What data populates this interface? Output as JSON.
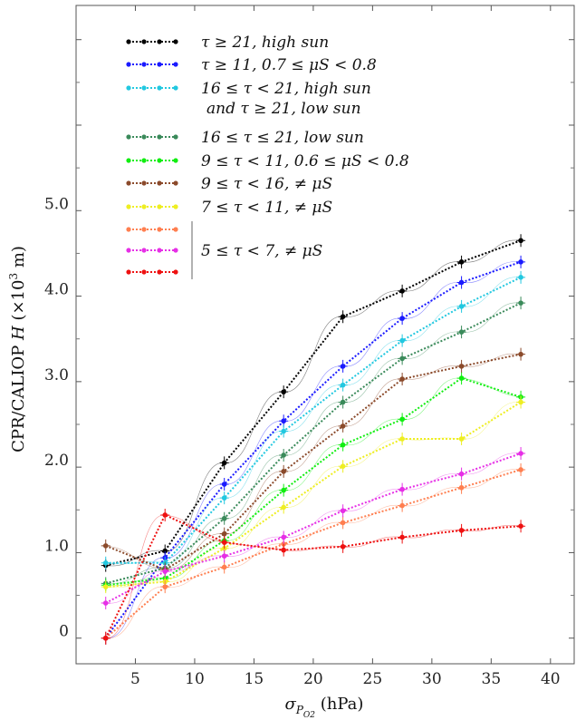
{
  "chart_data": {
    "type": "line",
    "xlabel": "σ_{P_{O2}} (hPa)",
    "ylabel": "CPR/CALIOP H (×10³ m)",
    "xlim": [
      0,
      42
    ],
    "ylim": [
      -0.3,
      7.4
    ],
    "x_ticks": [
      5,
      10,
      15,
      20,
      25,
      30,
      35,
      40
    ],
    "y_ticks": [
      {
        "value": 0,
        "label": "0"
      },
      {
        "value": 1,
        "label": "1.0"
      },
      {
        "value": 2,
        "label": "2.0"
      },
      {
        "value": 3,
        "label": "3.0"
      },
      {
        "value": 4,
        "label": "4.0"
      },
      {
        "value": 5,
        "label": "5.0"
      }
    ],
    "grid": false,
    "legend_position": "top-left",
    "x": [
      2.5,
      7.5,
      12.5,
      17.5,
      22.5,
      27.5,
      32.5,
      37.5
    ],
    "series": [
      {
        "name": "τ ≥ 21, high sun",
        "color": "#000000",
        "values": [
          0.85,
          1.02,
          2.05,
          2.88,
          3.76,
          4.06,
          4.4,
          4.65
        ]
      },
      {
        "name": "τ ≥ 11, 0.7 ≤ μS < 0.8",
        "color": "#1a1aff",
        "values": [
          0.0,
          0.94,
          1.8,
          2.54,
          3.18,
          3.74,
          4.16,
          4.4
        ]
      },
      {
        "name": "16 ≤ τ < 21, high sun and τ ≥ 21, low sun",
        "color": "#22c8e0",
        "values": [
          0.88,
          0.88,
          1.64,
          2.42,
          2.96,
          3.48,
          3.88,
          4.22
        ]
      },
      {
        "name": "16 ≤ τ ≤ 21, low sun",
        "color": "#3a8a5a",
        "values": [
          0.64,
          0.82,
          1.4,
          2.14,
          2.76,
          3.27,
          3.58,
          3.92
        ]
      },
      {
        "name": "9 ≤ τ < 11, 0.6 ≤ μS < 0.8",
        "color": "#11ee11",
        "values": [
          0.62,
          0.7,
          1.14,
          1.73,
          2.26,
          2.56,
          3.04,
          2.82
        ]
      },
      {
        "name": "9 ≤ τ < 16, ≠ μS",
        "color": "#8b4a2b",
        "values": [
          1.08,
          0.8,
          1.22,
          1.95,
          2.48,
          3.03,
          3.18,
          3.32
        ]
      },
      {
        "name": "7 ≤ τ < 11, ≠ μS",
        "color": "#eeee22",
        "values": [
          0.6,
          0.66,
          1.05,
          1.53,
          2.01,
          2.33,
          2.33,
          2.76
        ]
      },
      {
        "name": "",
        "color": "#ff7f50",
        "values": [
          0.0,
          0.6,
          0.83,
          1.1,
          1.35,
          1.55,
          1.76,
          1.97
        ]
      },
      {
        "name": "5 ≤ τ < 7, ≠ μS",
        "color": "#e62fe6",
        "values": [
          0.41,
          0.78,
          0.96,
          1.18,
          1.49,
          1.74,
          1.92,
          2.16
        ]
      },
      {
        "name": "",
        "color": "#ee1111",
        "values": [
          0.0,
          1.44,
          1.12,
          1.03,
          1.07,
          1.18,
          1.26,
          1.31
        ]
      }
    ]
  },
  "legend": {
    "entries": [
      {
        "label": "τ ≥ 21, high sun",
        "color": "#000000"
      },
      {
        "label": "τ ≥ 11, 0.7 ≤ μS < 0.8",
        "color": "#1a1aff"
      },
      {
        "label": "16 ≤ τ < 21, high sun",
        "label2": "and τ ≥ 21, low sun",
        "color": "#22c8e0"
      },
      {
        "label": "16 ≤ τ ≤ 21, low sun",
        "color": "#3a8a5a"
      },
      {
        "label": "9 ≤ τ < 11, 0.6 ≤ μS < 0.8",
        "color": "#11ee11"
      },
      {
        "label": "9 ≤ τ < 16, ≠ μS",
        "color": "#8b4a2b"
      },
      {
        "label": "7 ≤ τ < 11, ≠ μS",
        "color": "#eeee22"
      },
      {
        "label": "",
        "color": "#ff7f50"
      },
      {
        "label": "5 ≤ τ < 7, ≠ μS",
        "color": "#e62fe6"
      },
      {
        "label": "",
        "color": "#ee1111"
      }
    ]
  }
}
